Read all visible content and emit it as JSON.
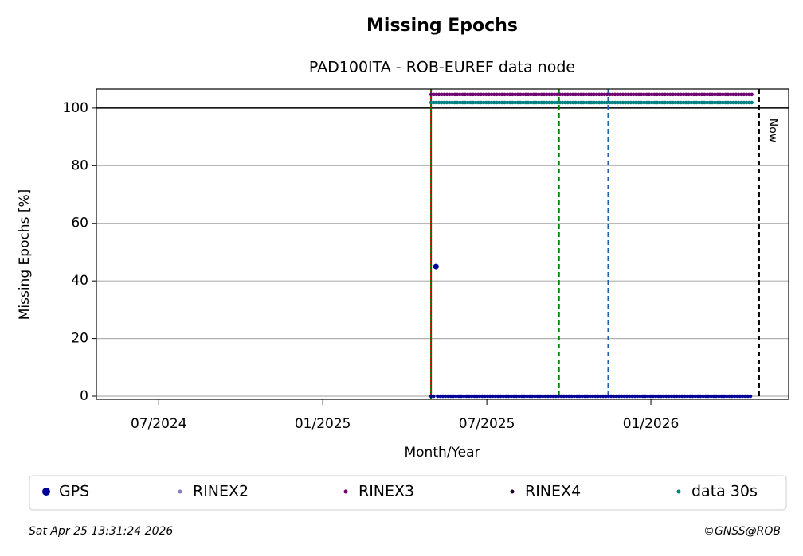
{
  "chart_data": {
    "type": "line",
    "title": "Missing Epochs",
    "subtitle": "PAD100ITA - ROB-EUREF data node",
    "x_label": "Month/Year",
    "y_label": "Missing Epochs [%]",
    "xlim": [
      2024.31,
      2026.42
    ],
    "ylim": [
      -1.1,
      106.6
    ],
    "xticks": [
      {
        "value": 2024.5,
        "label": "07/2024"
      },
      {
        "value": 2025.0,
        "label": "01/2025"
      },
      {
        "value": 2025.5,
        "label": "07/2025"
      },
      {
        "value": 2026.0,
        "label": "01/2026"
      }
    ],
    "yticks": [
      0,
      20,
      40,
      60,
      80,
      100
    ],
    "grid": true,
    "hline": 100,
    "vlines": [
      {
        "x": 2025.33,
        "color": "#cc0000",
        "style": "solid"
      },
      {
        "x": 2025.33,
        "color": "#008000",
        "style": "dotted"
      },
      {
        "x": 2025.72,
        "color": "#008000",
        "style": "dashed"
      },
      {
        "x": 2025.87,
        "color": "#1f5fa8",
        "style": "dashed"
      },
      {
        "x": 2026.33,
        "color": "#000000",
        "style": "dashed",
        "label": "Now"
      }
    ],
    "series": [
      {
        "name": "GPS",
        "color": "#000099",
        "x": [
          2025.33,
          2025.34,
          2025.343,
          2025.345,
          2025.347,
          2025.35,
          2026.31
        ],
        "values": [
          0,
          0,
          null,
          45,
          null,
          0,
          0
        ]
      },
      {
        "name": "RINEX2",
        "color": "#8080c0",
        "x": [],
        "values": []
      },
      {
        "name": "RINEX3",
        "color": "#700070",
        "x": [
          2025.33,
          2026.31
        ],
        "values": [
          104.7,
          104.7
        ]
      },
      {
        "name": "RINEX4",
        "color": "#1a0020",
        "x": [],
        "values": []
      },
      {
        "name": "data 30s",
        "color": "#008080",
        "x": [
          2025.33,
          2026.31
        ],
        "values": [
          101.9,
          101.9
        ]
      }
    ],
    "timestamp": "Sat Apr 25 13:31:24 2026",
    "copyright": "©GNSS@ROB"
  }
}
